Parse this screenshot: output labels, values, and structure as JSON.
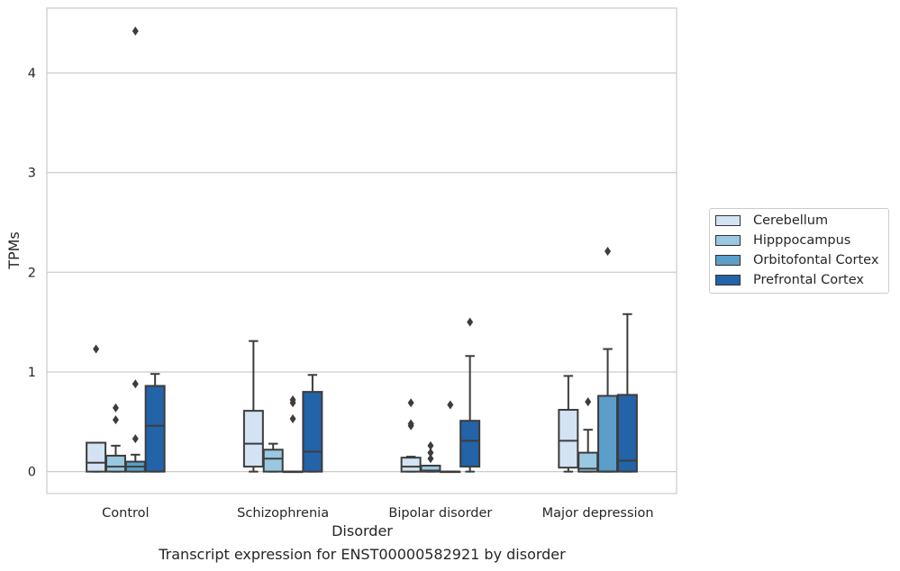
{
  "chart_data": {
    "type": "box",
    "caption": "Transcript expression for ENST00000582921 by disorder",
    "xlabel": "Disorder",
    "ylabel": "TPMs",
    "ylim": [
      -0.22,
      4.65
    ],
    "yticks": [
      0,
      1,
      2,
      3,
      4
    ],
    "grid": true,
    "legend_position": "right",
    "categories": [
      "Control",
      "Schizophrenia",
      "Bipolar disorder",
      "Major depression"
    ],
    "series": [
      {
        "name": "Cerebellum",
        "color": "#d3e3f3",
        "boxes": [
          {
            "q1": 0.0,
            "median": 0.09,
            "q3": 0.29,
            "wlo": 0.0,
            "whi": 0.29,
            "outliers": [
              1.23
            ]
          },
          {
            "q1": 0.05,
            "median": 0.28,
            "q3": 0.61,
            "wlo": 0.0,
            "whi": 1.31,
            "outliers": []
          },
          {
            "q1": 0.0,
            "median": 0.05,
            "q3": 0.14,
            "wlo": 0.0,
            "whi": 0.15,
            "outliers": [
              0.46,
              0.48,
              0.69
            ]
          },
          {
            "q1": 0.04,
            "median": 0.31,
            "q3": 0.62,
            "wlo": 0.0,
            "whi": 0.96,
            "outliers": []
          }
        ]
      },
      {
        "name": "Hipppocampus",
        "color": "#9ac8e0",
        "boxes": [
          {
            "q1": 0.0,
            "median": 0.05,
            "q3": 0.16,
            "wlo": 0.0,
            "whi": 0.26,
            "outliers": [
              0.52,
              0.64
            ]
          },
          {
            "q1": 0.0,
            "median": 0.13,
            "q3": 0.22,
            "wlo": 0.0,
            "whi": 0.28,
            "outliers": []
          },
          {
            "q1": 0.0,
            "median": 0.01,
            "q3": 0.06,
            "wlo": 0.0,
            "whi": 0.06,
            "outliers": [
              0.13,
              0.19,
              0.26
            ]
          },
          {
            "q1": 0.0,
            "median": 0.03,
            "q3": 0.19,
            "wlo": 0.0,
            "whi": 0.42,
            "outliers": [
              0.7
            ]
          }
        ]
      },
      {
        "name": "Orbitofontal Cortex",
        "color": "#5a9ec9",
        "boxes": [
          {
            "q1": 0.0,
            "median": 0.05,
            "q3": 0.1,
            "wlo": 0.0,
            "whi": 0.17,
            "outliers": [
              0.33,
              0.88,
              4.42
            ]
          },
          {
            "q1": 0.0,
            "median": 0.0,
            "q3": 0.0,
            "wlo": 0.0,
            "whi": 0.0,
            "outliers": [
              0.53,
              0.69,
              0.72
            ]
          },
          {
            "q1": 0.0,
            "median": 0.0,
            "q3": 0.0,
            "wlo": 0.0,
            "whi": 0.0,
            "outliers": [
              0.67
            ]
          },
          {
            "q1": 0.0,
            "median": 0.0,
            "q3": 0.76,
            "wlo": 0.0,
            "whi": 1.23,
            "outliers": [
              2.21
            ]
          }
        ]
      },
      {
        "name": "Prefrontal Cortex",
        "color": "#2363a8",
        "boxes": [
          {
            "q1": 0.0,
            "median": 0.46,
            "q3": 0.86,
            "wlo": 0.0,
            "whi": 0.98,
            "outliers": []
          },
          {
            "q1": 0.0,
            "median": 0.2,
            "q3": 0.8,
            "wlo": 0.0,
            "whi": 0.97,
            "outliers": []
          },
          {
            "q1": 0.05,
            "median": 0.31,
            "q3": 0.51,
            "wlo": 0.0,
            "whi": 1.16,
            "outliers": [
              1.5
            ]
          },
          {
            "q1": 0.0,
            "median": 0.11,
            "q3": 0.77,
            "wlo": 0.0,
            "whi": 1.58,
            "outliers": []
          }
        ]
      }
    ]
  }
}
